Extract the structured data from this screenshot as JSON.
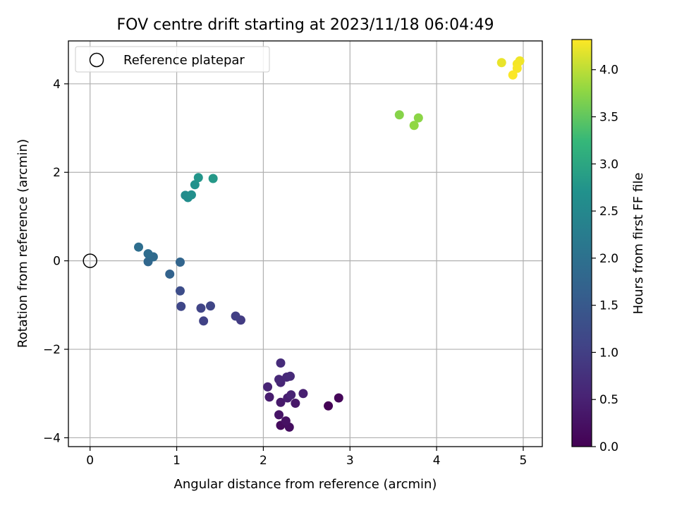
{
  "chart_data": {
    "type": "scatter",
    "title": "FOV centre drift starting at 2023/11/18 06:04:49",
    "xlabel": "Angular distance from reference (arcmin)",
    "ylabel": "Rotation from reference (arcmin)",
    "xlim": [
      -0.25,
      5.22
    ],
    "ylim": [
      -4.2,
      4.97
    ],
    "xticks": [
      0,
      1,
      2,
      3,
      4,
      5
    ],
    "yticks": [
      -4,
      -2,
      0,
      2,
      4
    ],
    "xtick_labels": [
      "0",
      "1",
      "2",
      "3",
      "4",
      "5"
    ],
    "ytick_labels": [
      "−4",
      "−2",
      "0",
      "2",
      "4"
    ],
    "grid": true,
    "legend": {
      "position": "upper-left",
      "entries": [
        "Reference platepar"
      ]
    },
    "reference_point": {
      "x": 0,
      "y": 0,
      "marker": "open-circle",
      "color": "#000000"
    },
    "colorbar": {
      "label": "Hours from first FF file",
      "colormap": "viridis",
      "range": [
        0.0,
        4.32
      ],
      "ticks": [
        0.0,
        0.5,
        1.0,
        1.5,
        2.0,
        2.5,
        3.0,
        3.5,
        4.0
      ],
      "tick_labels": [
        "0.0",
        "0.5",
        "1.0",
        "1.5",
        "2.0",
        "2.5",
        "3.0",
        "3.5",
        "4.0"
      ]
    },
    "points": [
      {
        "x": 2.75,
        "y": -3.28,
        "t": 0.02
      },
      {
        "x": 2.87,
        "y": -3.1,
        "t": 0.08
      },
      {
        "x": 2.2,
        "y": -3.72,
        "t": 0.15
      },
      {
        "x": 2.3,
        "y": -3.76,
        "t": 0.2
      },
      {
        "x": 2.26,
        "y": -3.62,
        "t": 0.25
      },
      {
        "x": 2.18,
        "y": -3.48,
        "t": 0.3
      },
      {
        "x": 2.37,
        "y": -3.22,
        "t": 0.35
      },
      {
        "x": 2.2,
        "y": -3.2,
        "t": 0.38
      },
      {
        "x": 2.07,
        "y": -3.08,
        "t": 0.42
      },
      {
        "x": 2.28,
        "y": -3.1,
        "t": 0.45
      },
      {
        "x": 2.46,
        "y": -3.0,
        "t": 0.48
      },
      {
        "x": 2.32,
        "y": -3.03,
        "t": 0.52
      },
      {
        "x": 2.05,
        "y": -2.85,
        "t": 0.55
      },
      {
        "x": 2.2,
        "y": -2.75,
        "t": 0.58
      },
      {
        "x": 2.18,
        "y": -2.68,
        "t": 0.6
      },
      {
        "x": 2.27,
        "y": -2.63,
        "t": 0.62
      },
      {
        "x": 2.31,
        "y": -2.61,
        "t": 0.65
      },
      {
        "x": 2.2,
        "y": -2.31,
        "t": 0.68
      },
      {
        "x": 1.74,
        "y": -1.34,
        "t": 0.95
      },
      {
        "x": 1.68,
        "y": -1.25,
        "t": 1.0
      },
      {
        "x": 1.31,
        "y": -1.36,
        "t": 1.05
      },
      {
        "x": 1.28,
        "y": -1.07,
        "t": 1.1
      },
      {
        "x": 1.39,
        "y": -1.02,
        "t": 1.12
      },
      {
        "x": 1.05,
        "y": -1.03,
        "t": 1.15
      },
      {
        "x": 1.04,
        "y": -0.68,
        "t": 1.25
      },
      {
        "x": 0.92,
        "y": -0.3,
        "t": 1.7
      },
      {
        "x": 1.04,
        "y": -0.03,
        "t": 1.75
      },
      {
        "x": 0.67,
        "y": -0.02,
        "t": 1.8
      },
      {
        "x": 0.73,
        "y": 0.09,
        "t": 1.85
      },
      {
        "x": 0.67,
        "y": 0.16,
        "t": 1.9
      },
      {
        "x": 0.56,
        "y": 0.31,
        "t": 1.95
      },
      {
        "x": 1.1,
        "y": 1.48,
        "t": 2.6
      },
      {
        "x": 1.13,
        "y": 1.43,
        "t": 2.62
      },
      {
        "x": 1.17,
        "y": 1.49,
        "t": 2.65
      },
      {
        "x": 1.21,
        "y": 1.72,
        "t": 2.7
      },
      {
        "x": 1.25,
        "y": 1.88,
        "t": 2.75
      },
      {
        "x": 1.42,
        "y": 1.86,
        "t": 2.8
      },
      {
        "x": 3.57,
        "y": 3.3,
        "t": 3.72
      },
      {
        "x": 3.79,
        "y": 3.23,
        "t": 3.75
      },
      {
        "x": 3.74,
        "y": 3.06,
        "t": 3.78
      },
      {
        "x": 4.75,
        "y": 4.48,
        "t": 4.22
      },
      {
        "x": 4.96,
        "y": 4.52,
        "t": 4.25
      },
      {
        "x": 4.93,
        "y": 4.45,
        "t": 4.27
      },
      {
        "x": 4.93,
        "y": 4.35,
        "t": 4.29
      },
      {
        "x": 4.88,
        "y": 4.2,
        "t": 4.31
      }
    ]
  }
}
